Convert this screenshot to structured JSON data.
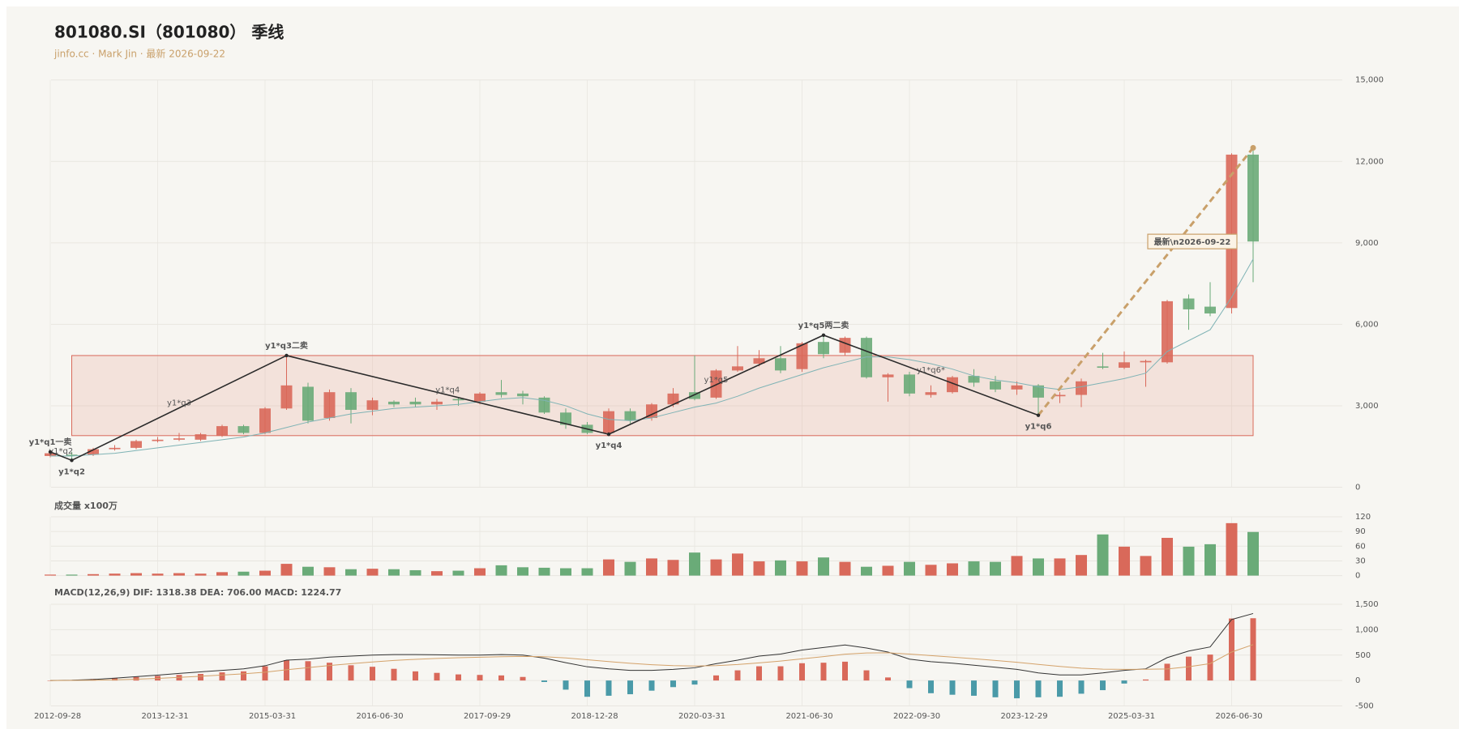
{
  "chart_data": [
    {
      "type": "candlestick",
      "title": "801080.SI（801080） 季线",
      "subtitle": "jinfo.cc · Mark Jin · 最新 2026-09-22",
      "categories": [
        "2012-09-28",
        null,
        null,
        null,
        null,
        "2013-12-31",
        null,
        null,
        null,
        null,
        "2015-03-31",
        null,
        null,
        null,
        null,
        "2016-06-30",
        null,
        null,
        null,
        null,
        "2017-09-29",
        null,
        null,
        null,
        null,
        "2018-12-28",
        null,
        null,
        null,
        null,
        "2020-03-31",
        null,
        null,
        null,
        null,
        "2021-06-30",
        null,
        null,
        null,
        null,
        "2022-09-30",
        null,
        null,
        null,
        null,
        "2023-12-29",
        null,
        null,
        null,
        null,
        "2025-03-31",
        null,
        null,
        null,
        null,
        "2026-06-30",
        null
      ],
      "open": [
        1150,
        1200,
        1200,
        1400,
        1450,
        1700,
        1750,
        1750,
        1900,
        2250,
        2000,
        2900,
        3700,
        2550,
        3500,
        2850,
        3150,
        3150,
        3050,
        3250,
        3150,
        3500,
        3450,
        3300,
        2750,
        2300,
        2000,
        2800,
        2550,
        3050,
        3500,
        3300,
        4300,
        4550,
        4750,
        4350,
        5350,
        4950,
        5500,
        4050,
        4150,
        3400,
        3500,
        4100,
        3900,
        3600,
        3750,
        3350,
        3400,
        4450,
        4400,
        4600,
        4600,
        6950,
        6650,
        6600,
        12250
      ],
      "high": [
        1280,
        1300,
        1450,
        1550,
        1750,
        1850,
        2000,
        2000,
        2300,
        2300,
        2950,
        4850,
        3850,
        3600,
        3650,
        3300,
        3200,
        3300,
        3250,
        3300,
        3500,
        3950,
        3550,
        3350,
        2900,
        2400,
        2900,
        2900,
        3100,
        3650,
        4850,
        4350,
        5200,
        5050,
        5200,
        5350,
        5600,
        5550,
        5550,
        4200,
        4250,
        3750,
        4100,
        4350,
        4100,
        3900,
        3800,
        3500,
        4000,
        4950,
        5000,
        4700,
        6900,
        7100,
        7550,
        12300,
        12400
      ],
      "low": [
        1100,
        1000,
        1150,
        1350,
        1400,
        1650,
        1700,
        1700,
        1850,
        1950,
        1950,
        2850,
        2350,
        2450,
        2350,
        2650,
        2950,
        2950,
        2850,
        3000,
        3050,
        3300,
        3050,
        2700,
        2150,
        1950,
        1950,
        2350,
        2450,
        2950,
        3200,
        3250,
        4250,
        4450,
        4200,
        4250,
        4750,
        4850,
        4000,
        3150,
        3350,
        3300,
        3450,
        3700,
        3500,
        3400,
        2650,
        3100,
        2950,
        4350,
        4350,
        3700,
        4550,
        5800,
        6300,
        6400,
        7550
      ],
      "close": [
        1250,
        1150,
        1400,
        1450,
        1700,
        1750,
        1800,
        1950,
        2250,
        2000,
        2900,
        3750,
        2450,
        3500,
        2850,
        3200,
        3050,
        3050,
        3150,
        3200,
        3450,
        3400,
        3350,
        2750,
        2300,
        2000,
        2800,
        2450,
        3050,
        3450,
        3250,
        4300,
        4450,
        4750,
        4300,
        5300,
        4900,
        5500,
        4050,
        4150,
        3450,
        3500,
        4050,
        3850,
        3600,
        3750,
        3300,
        3400,
        3900,
        4400,
        4600,
        4650,
        6850,
        6550,
        6400,
        12250,
        9050
      ],
      "ma": [
        1150,
        1150,
        1200,
        1250,
        1350,
        1450,
        1550,
        1650,
        1750,
        1850,
        2000,
        2200,
        2400,
        2550,
        2700,
        2800,
        2900,
        2950,
        3000,
        3050,
        3150,
        3250,
        3300,
        3200,
        3000,
        2700,
        2500,
        2450,
        2550,
        2750,
        2950,
        3100,
        3350,
        3650,
        3900,
        4150,
        4400,
        4600,
        4800,
        4800,
        4700,
        4550,
        4350,
        4100,
        3950,
        3850,
        3700,
        3600,
        3700,
        3850,
        4000,
        4200,
        5000,
        5400,
        5800,
        7000,
        8400
      ],
      "ma_color": "#7fb3b5",
      "up_color": "#d9695a",
      "down_color": "#6aab78",
      "ylim": [
        0,
        15000
      ],
      "yticks": [
        0,
        {
          "value": 3000,
          "label": "3,000"
        },
        {
          "value": 6000,
          "label": "6,000"
        },
        {
          "value": 9000,
          "label": "9,000"
        },
        {
          "value": 12000,
          "label": "12,000"
        },
        {
          "value": 15000,
          "label": "15,000"
        }
      ],
      "zone": {
        "from": 1,
        "to": 56,
        "low": 1900,
        "high": 4850
      },
      "pivots": [
        {
          "label": "y1*q1一卖",
          "index": 0,
          "value": 1300
        },
        {
          "label": "y1*q2",
          "index": 1,
          "value": 990
        },
        {
          "label": "y1*q3二卖",
          "index": 11,
          "value": 4850
        },
        {
          "label": "y1*q4",
          "index": 26,
          "value": 1950
        },
        {
          "label": "y1*q5两二卖",
          "index": 36,
          "value": 5600
        },
        {
          "label": "y1*q6",
          "index": 46,
          "value": 2650
        },
        {
          "index": 56,
          "value": 12500
        }
      ],
      "segment_labels": [
        null,
        "y1*q2",
        "y1*q3",
        "y1*q4",
        "y1*q5",
        "y1*q6*"
      ],
      "latest_label": "最新\\n2026-09-22"
    },
    {
      "type": "bar",
      "title": "成交量 x100万",
      "values": [
        2,
        2,
        3,
        4,
        5,
        4,
        5,
        4,
        7,
        8,
        10,
        24,
        18,
        17,
        13,
        14,
        13,
        11,
        9,
        10,
        15,
        21,
        17,
        16,
        15,
        15,
        33,
        28,
        35,
        32,
        47,
        33,
        45,
        29,
        31,
        29,
        37,
        28,
        18,
        20,
        28,
        22,
        25,
        29,
        28,
        40,
        35,
        35,
        42,
        84,
        59,
        40,
        77,
        59,
        64,
        107,
        89
      ],
      "ylim": [
        0,
        120
      ],
      "yticks": [
        0,
        30,
        60,
        90,
        120
      ]
    },
    {
      "type": "macd",
      "title": "MACD(12,26,9) DIF: 1318.38 DEA: 706.00 MACD: 1224.77",
      "macd": [
        0,
        10,
        30,
        50,
        70,
        90,
        110,
        130,
        160,
        180,
        280,
        400,
        380,
        350,
        300,
        270,
        230,
        180,
        150,
        120,
        110,
        100,
        70,
        -30,
        -180,
        -320,
        -300,
        -270,
        -200,
        -130,
        -80,
        100,
        200,
        280,
        280,
        340,
        350,
        370,
        200,
        60,
        -150,
        -250,
        -280,
        -300,
        -330,
        -350,
        -330,
        -320,
        -260,
        -190,
        -60,
        20,
        330,
        470,
        510,
        1220,
        1225
      ],
      "dif": [
        0,
        5,
        20,
        45,
        75,
        105,
        140,
        170,
        200,
        230,
        290,
        400,
        420,
        460,
        480,
        500,
        510,
        510,
        505,
        500,
        500,
        510,
        500,
        440,
        350,
        270,
        230,
        200,
        200,
        220,
        250,
        330,
        400,
        480,
        520,
        600,
        650,
        700,
        640,
        560,
        420,
        370,
        340,
        300,
        260,
        220,
        150,
        110,
        110,
        150,
        200,
        230,
        450,
        580,
        660,
        1200,
        1318
      ],
      "dea": [
        0,
        2,
        6,
        14,
        26,
        42,
        62,
        84,
        108,
        132,
        164,
        211,
        253,
        294,
        331,
        365,
        394,
        417,
        435,
        448,
        458,
        468,
        475,
        468,
        444,
        409,
        373,
        338,
        311,
        292,
        284,
        293,
        314,
        347,
        382,
        426,
        471,
        517,
        541,
        545,
        520,
        490,
        460,
        428,
        394,
        359,
        317,
        276,
        243,
        224,
        219,
        221,
        227,
        271,
        333,
        560,
        706
      ],
      "pos_color": "#d9695a",
      "neg_color": "#4a9aa8",
      "dif_color": "#333333",
      "dea_color": "#d4a26a",
      "ylim": [
        -500,
        1500
      ],
      "yticks": [
        {
          "value": -500,
          "label": "-500"
        },
        0,
        500,
        {
          "value": 1000,
          "label": "1,000"
        },
        {
          "value": 1500,
          "label": "1,500"
        }
      ]
    }
  ]
}
